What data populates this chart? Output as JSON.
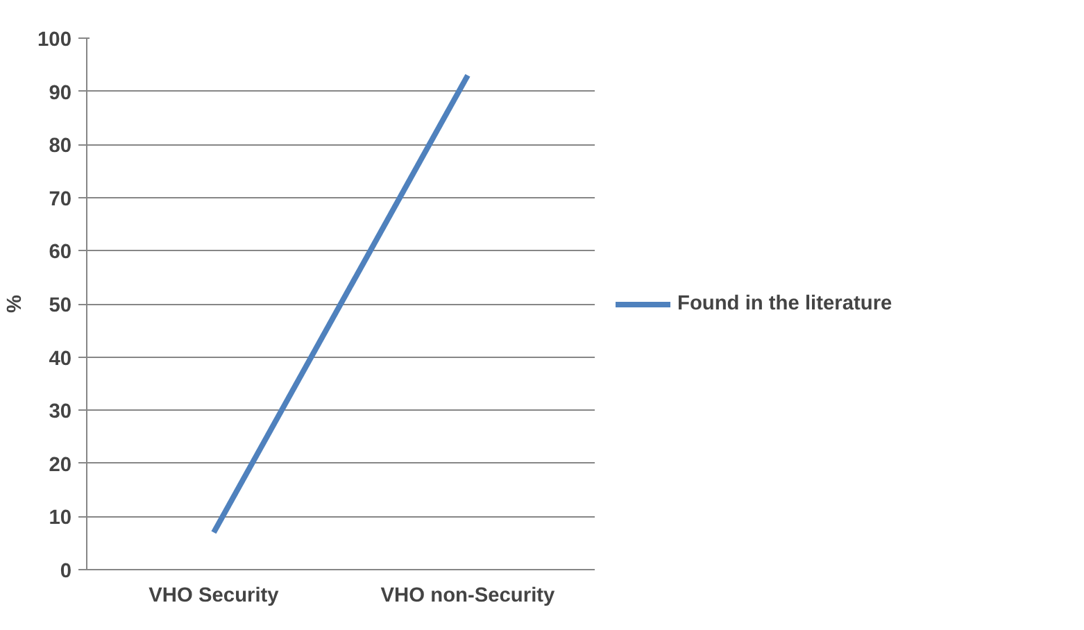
{
  "chart_data": {
    "type": "line",
    "ylabel": "%",
    "categories": [
      "VHO Security",
      "VHO non-Security"
    ],
    "series": [
      {
        "name": "Found in the literature",
        "color": "#4f81bd",
        "values": [
          7,
          93
        ]
      }
    ],
    "ylim": [
      0,
      100
    ],
    "yticks": [
      0,
      10,
      20,
      30,
      40,
      50,
      60,
      70,
      80,
      90,
      100
    ],
    "grid": "y",
    "legend": "right",
    "marker": "none",
    "line_style": "solid"
  }
}
